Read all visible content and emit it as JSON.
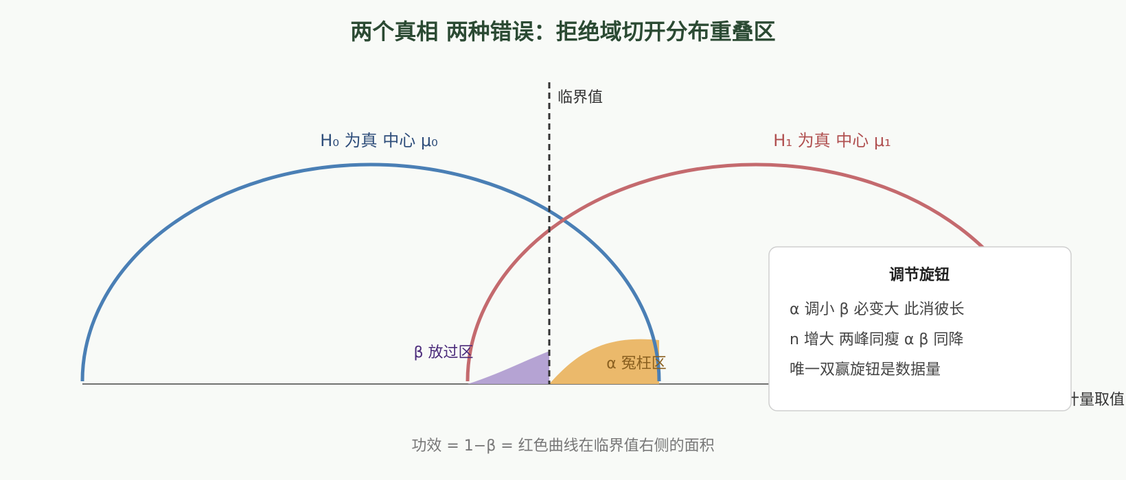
{
  "title": "两个真相 两种错误：拒绝域切开分布重叠区",
  "critical_label": "临界值",
  "h0_label": "H₀ 为真 中心 μ₀",
  "h1_label": "H₁ 为真 中心 μ₁",
  "beta_label": "β 放过区",
  "alpha_label": "α 冤枉区",
  "x_axis_label": "统计量取值",
  "panel": {
    "title": "调节旋钮",
    "lines": [
      "α 调小 β 必变大 此消彼长",
      "n 增大 两峰同瘦 α β 同降",
      "唯一双赢旋钮是数据量"
    ]
  },
  "footer": "功效 = 1−β = 红色曲线在临界值右侧的面积"
}
